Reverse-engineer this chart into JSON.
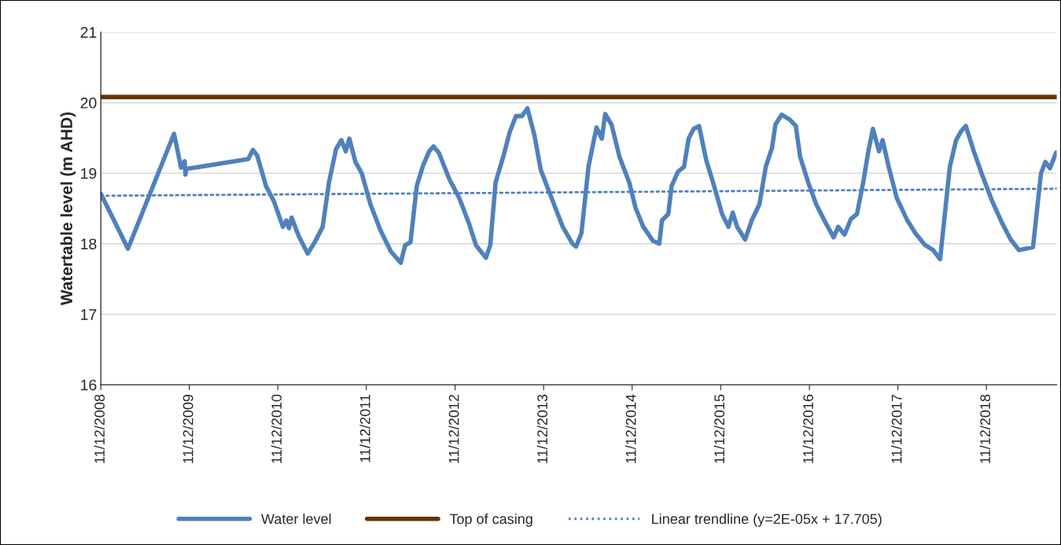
{
  "chart_data": {
    "type": "line",
    "ylabel": "Watertable level (m AHD)",
    "xlim": [
      "2008-12-11",
      "2019-09-27"
    ],
    "ylim": [
      16,
      21
    ],
    "yticks": [
      16,
      17,
      18,
      19,
      20,
      21
    ],
    "xticks": [
      {
        "value": "2008-12-11",
        "label": "11/12/2008"
      },
      {
        "value": "2009-12-11",
        "label": "11/12/2009"
      },
      {
        "value": "2010-12-11",
        "label": "11/12/2010"
      },
      {
        "value": "2011-12-11",
        "label": "11/12/2011"
      },
      {
        "value": "2012-12-11",
        "label": "11/12/2012"
      },
      {
        "value": "2013-12-11",
        "label": "11/12/2013"
      },
      {
        "value": "2014-12-11",
        "label": "11/12/2014"
      },
      {
        "value": "2015-12-11",
        "label": "11/12/2015"
      },
      {
        "value": "2016-12-11",
        "label": "11/12/2016"
      },
      {
        "value": "2017-12-11",
        "label": "11/12/2017"
      },
      {
        "value": "2018-12-11",
        "label": "11/12/2018"
      }
    ],
    "grid": "y",
    "legend": "bottom",
    "marker": "none",
    "series": [
      {
        "name": "Water level",
        "color": "#4f81bd",
        "line_style": "solid",
        "x": [
          "2008-12-11",
          "2009-04-02",
          "2009-10-09",
          "2009-11-07",
          "2009-11-22",
          "2009-11-25",
          "2009-11-29",
          "2010-08-11",
          "2010-08-30",
          "2010-09-17",
          "2010-10-23",
          "2010-11-25",
          "2011-01-01",
          "2011-01-15",
          "2011-01-26",
          "2011-02-06",
          "2011-03-07",
          "2011-04-13",
          "2011-05-12",
          "2011-06-14",
          "2011-07-10",
          "2011-08-08",
          "2011-08-30",
          "2011-09-17",
          "2011-10-02",
          "2011-10-27",
          "2011-11-22",
          "2011-12-28",
          "2012-02-06",
          "2012-03-21",
          "2012-05-01",
          "2012-05-19",
          "2012-06-10",
          "2012-07-06",
          "2012-08-01",
          "2012-08-26",
          "2012-09-13",
          "2012-10-05",
          "2012-11-18",
          "2012-12-28",
          "2013-02-06",
          "2013-03-07",
          "2013-04-17",
          "2013-05-05",
          "2013-05-27",
          "2013-06-29",
          "2013-07-24",
          "2013-08-19",
          "2013-09-13",
          "2013-10-05",
          "2013-11-03",
          "2013-11-29",
          "2014-01-08",
          "2014-02-28",
          "2014-04-09",
          "2014-04-24",
          "2014-05-16",
          "2014-06-14",
          "2014-07-17",
          "2014-08-08",
          "2014-08-22",
          "2014-09-17",
          "2014-10-20",
          "2014-11-29",
          "2014-12-25",
          "2015-01-26",
          "2015-03-07",
          "2015-04-02",
          "2015-04-13",
          "2015-05-09",
          "2015-05-23",
          "2015-06-18",
          "2015-07-13",
          "2015-08-01",
          "2015-08-22",
          "2015-09-13",
          "2015-10-13",
          "2015-11-14",
          "2015-12-17",
          "2016-01-12",
          "2016-01-30",
          "2016-02-17",
          "2016-03-21",
          "2016-04-17",
          "2016-05-19",
          "2016-06-14",
          "2016-07-10",
          "2016-07-24",
          "2016-08-19",
          "2016-09-21",
          "2016-10-16",
          "2016-11-03",
          "2016-12-06",
          "2017-01-08",
          "2017-02-17",
          "2017-03-21",
          "2017-04-09",
          "2017-05-05",
          "2017-05-31",
          "2017-06-25",
          "2017-07-21",
          "2017-08-11",
          "2017-08-30",
          "2017-09-24",
          "2017-10-09",
          "2017-11-03",
          "2017-12-06",
          "2018-01-19",
          "2018-02-21",
          "2018-04-02",
          "2018-05-05",
          "2018-06-03",
          "2018-07-13",
          "2018-08-08",
          "2018-08-30",
          "2018-09-17",
          "2018-10-20",
          "2018-11-25",
          "2019-01-04",
          "2019-02-14",
          "2019-03-21",
          "2019-04-24",
          "2019-06-21",
          "2019-07-24",
          "2019-08-11",
          "2019-08-30",
          "2019-09-24"
        ],
        "values": [
          18.71,
          17.93,
          19.56,
          19.08,
          19.17,
          18.98,
          19.06,
          19.2,
          19.33,
          19.25,
          18.82,
          18.6,
          18.24,
          18.33,
          18.22,
          18.37,
          18.11,
          17.86,
          18.02,
          18.24,
          18.87,
          19.34,
          19.47,
          19.31,
          19.49,
          19.16,
          19.0,
          18.56,
          18.2,
          17.89,
          17.73,
          17.98,
          18.02,
          18.82,
          19.11,
          19.31,
          19.38,
          19.29,
          18.91,
          18.65,
          18.29,
          17.98,
          17.8,
          17.98,
          18.87,
          19.25,
          19.58,
          19.81,
          19.81,
          19.92,
          19.54,
          19.05,
          18.69,
          18.24,
          18.0,
          17.96,
          18.15,
          19.09,
          19.65,
          19.49,
          19.84,
          19.69,
          19.23,
          18.87,
          18.51,
          18.24,
          18.04,
          18.0,
          18.33,
          18.42,
          18.82,
          19.02,
          19.09,
          19.49,
          19.63,
          19.67,
          19.18,
          18.82,
          18.42,
          18.24,
          18.44,
          18.24,
          18.06,
          18.33,
          18.56,
          19.09,
          19.36,
          19.69,
          19.83,
          19.76,
          19.67,
          19.23,
          18.87,
          18.56,
          18.29,
          18.09,
          18.24,
          18.13,
          18.35,
          18.42,
          18.87,
          19.31,
          19.63,
          19.31,
          19.47,
          19.09,
          18.65,
          18.33,
          18.15,
          17.98,
          17.91,
          17.78,
          19.09,
          19.47,
          19.6,
          19.67,
          19.31,
          18.96,
          18.6,
          18.29,
          18.06,
          17.91,
          17.95,
          19.0,
          19.16,
          19.07,
          19.29
        ]
      },
      {
        "name": "Top of casing",
        "color": "#663300",
        "line_style": "solid",
        "x": [
          "2008-12-11",
          "2019-09-27"
        ],
        "values": [
          20.08,
          20.08
        ]
      },
      {
        "name": "Linear trendline (y=2E-05x + 17.705)",
        "color": "#4f81bd",
        "line_style": "dotted",
        "x": [
          "2008-12-11",
          "2019-09-27"
        ],
        "values": [
          18.68,
          18.78
        ]
      }
    ]
  }
}
